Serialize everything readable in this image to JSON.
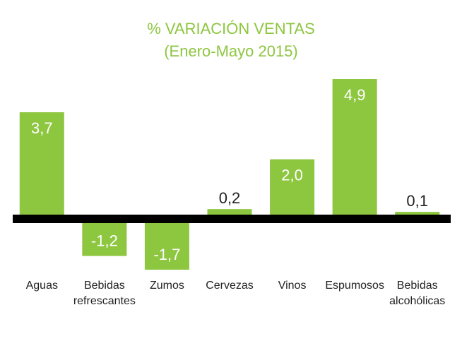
{
  "chart_data": {
    "type": "bar",
    "title": "% VARIACIÓN VENTAS",
    "subtitle": "(Enero-Mayo 2015)",
    "categories": [
      [
        "Aguas"
      ],
      [
        "Bebidas",
        "refrescantes"
      ],
      [
        "Zumos"
      ],
      [
        "Cervezas"
      ],
      [
        "Vinos"
      ],
      [
        "Espumosos"
      ],
      [
        "Bebidas",
        "alcohólicas"
      ]
    ],
    "values": [
      3.7,
      -1.2,
      -1.7,
      0.2,
      2.0,
      4.9,
      0.1
    ],
    "value_labels": [
      "3,7",
      "-1,2",
      "-1,7",
      "0,2",
      "2,0",
      "4,9",
      "0,1"
    ],
    "ylim": [
      -1.7,
      4.9
    ],
    "xlabel": "",
    "ylabel": "",
    "grid": false,
    "colors": {
      "bar": "#8dc63f",
      "title": "#8dc63f",
      "axis": "#000000",
      "label_inside": "#ffffff",
      "label_outside": "#222222"
    }
  }
}
